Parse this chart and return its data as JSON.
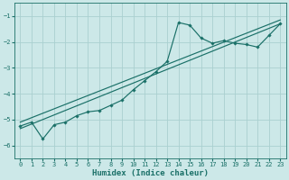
{
  "xlabel": "Humidex (Indice chaleur)",
  "bg_color": "#cce8e8",
  "line_color": "#1a7068",
  "grid_color": "#aad0d0",
  "x_jagged": [
    0,
    1,
    2,
    3,
    4,
    5,
    6,
    7,
    8,
    9,
    10,
    11,
    12,
    13,
    14,
    15,
    16,
    17,
    18,
    19,
    20,
    21,
    22,
    23
  ],
  "y_jagged": [
    -5.25,
    -5.1,
    -5.75,
    -5.2,
    -5.1,
    -4.85,
    -4.7,
    -4.65,
    -4.45,
    -4.25,
    -3.85,
    -3.5,
    -3.15,
    -2.75,
    -1.25,
    -1.35,
    -1.85,
    -2.05,
    -1.95,
    -2.05,
    -2.1,
    -2.2,
    -1.75,
    -1.3
  ],
  "trend1_x": [
    0,
    23
  ],
  "trend1_y": [
    -5.35,
    -1.3
  ],
  "trend2_x": [
    0,
    23
  ],
  "trend2_y": [
    -5.1,
    -1.15
  ],
  "ylim": [
    -6.5,
    -0.5
  ],
  "xlim": [
    -0.5,
    23.5
  ],
  "yticks": [
    -6,
    -5,
    -4,
    -3,
    -2,
    -1
  ],
  "xticks": [
    0,
    1,
    2,
    3,
    4,
    5,
    6,
    7,
    8,
    9,
    10,
    11,
    12,
    13,
    14,
    15,
    16,
    17,
    18,
    19,
    20,
    21,
    22,
    23
  ],
  "xlabel_fontsize": 6.5,
  "tick_fontsize": 5.0
}
